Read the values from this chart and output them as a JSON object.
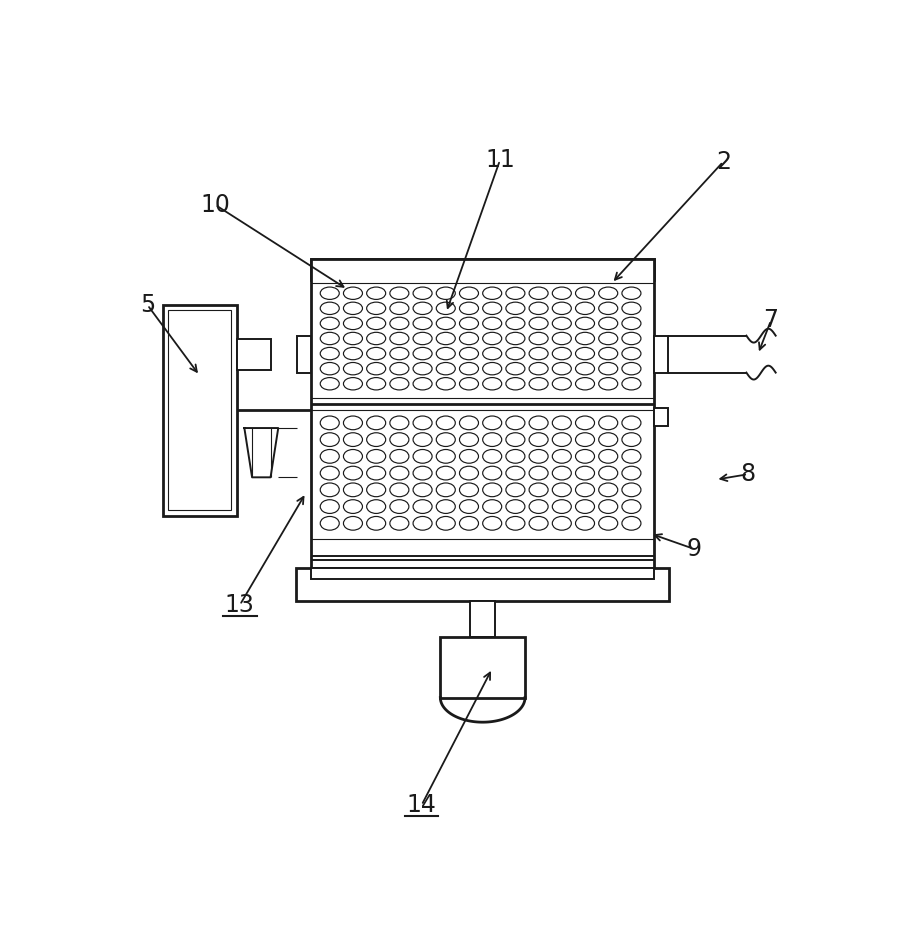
{
  "bg_color": "#ffffff",
  "line_color": "#1a1a1a",
  "lw_thick": 2.0,
  "lw_med": 1.4,
  "lw_thin": 0.8,
  "figsize": [
    9.02,
    9.49
  ],
  "dpi": 100
}
